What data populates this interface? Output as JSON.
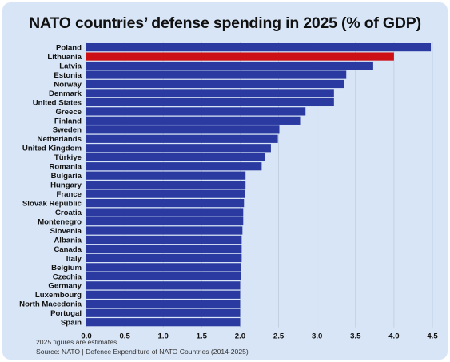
{
  "title": "NATO countries’ defense spending in 2025 (% of GDP)",
  "footnotes": {
    "estimate_note": "2025 figures are estimates",
    "source": "Source: NATO | Defence Expenditure of NATO Countries (2014-2025)"
  },
  "colors": {
    "background": "#d8e5f6",
    "bar_default": "#2a3aa0",
    "bar_highlight": "#cc1016"
  },
  "chart_data": {
    "type": "bar",
    "orientation": "horizontal",
    "title": "NATO countries’ defense spending in 2025 (% of GDP)",
    "xlabel": "",
    "ylabel": "",
    "xlim": [
      0,
      4.5
    ],
    "x_ticks": [
      "0.0",
      "0.5",
      "1.0",
      "1.5",
      "2.0",
      "2.5",
      "3.0",
      "3.5",
      "4.0",
      "4.5"
    ],
    "grid": "vertical",
    "highlight": "Lithuania",
    "categories": [
      "Poland",
      "Lithuania",
      "Latvia",
      "Estonia",
      "Norway",
      "Denmark",
      "United States",
      "Greece",
      "Finland",
      "Sweden",
      "Netherlands",
      "United Kingdom",
      "Türkiye",
      "Romania",
      "Bulgaria",
      "Hungary",
      "France",
      "Slovak Republic",
      "Croatia",
      "Montenegro",
      "Slovenia",
      "Albania",
      "Canada",
      "Italy",
      "Belgium",
      "Czechia",
      "Germany",
      "Luxembourg",
      "North Macedonia",
      "Portugal",
      "Spain"
    ],
    "values": [
      4.48,
      4.0,
      3.73,
      3.38,
      3.35,
      3.22,
      3.22,
      2.85,
      2.78,
      2.51,
      2.49,
      2.4,
      2.32,
      2.28,
      2.07,
      2.07,
      2.06,
      2.05,
      2.04,
      2.04,
      2.03,
      2.02,
      2.02,
      2.02,
      2.01,
      2.01,
      2.0,
      2.0,
      2.0,
      2.0,
      2.0
    ]
  }
}
